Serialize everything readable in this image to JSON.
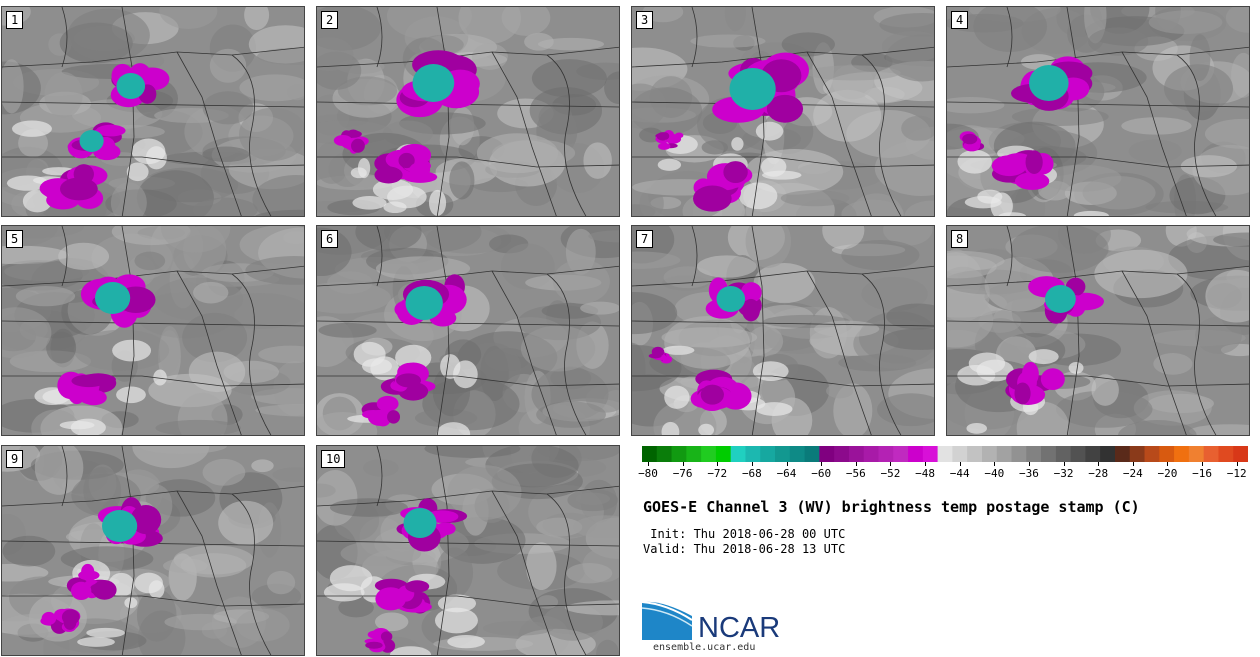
{
  "panels": [
    {
      "label": "1"
    },
    {
      "label": "2"
    },
    {
      "label": "3"
    },
    {
      "label": "4"
    },
    {
      "label": "5"
    },
    {
      "label": "6"
    },
    {
      "label": "7"
    },
    {
      "label": "8"
    },
    {
      "label": "9"
    },
    {
      "label": "10"
    }
  ],
  "colorbar": {
    "ticks": [
      "−80",
      "−76",
      "−72",
      "−68",
      "−64",
      "−60",
      "−56",
      "−52",
      "−48",
      "−44",
      "−40",
      "−36",
      "−32",
      "−28",
      "−24",
      "−20",
      "−16",
      "−12"
    ],
    "colors": [
      "#006400",
      "#0a7d0a",
      "#119a11",
      "#18b418",
      "#20cc20",
      "#00cc00",
      "#20d0c0",
      "#1cb8b0",
      "#16a8a0",
      "#129890",
      "#0e8a86",
      "#0a7b7a",
      "#800080",
      "#8c0a8c",
      "#9a129a",
      "#a81aa8",
      "#b422b4",
      "#c02ac0",
      "#cc00cc",
      "#d810d8",
      "#e2e2e2",
      "#d2d2d2",
      "#c2c2c2",
      "#b2b2b2",
      "#a2a2a2",
      "#929292",
      "#828282",
      "#727272",
      "#626262",
      "#525252",
      "#424242",
      "#323232",
      "#5a2a1a",
      "#8a3a1a",
      "#b84a1a",
      "#d85a10",
      "#f07010",
      "#f08030",
      "#e86030",
      "#e04a20",
      "#d83818"
    ]
  },
  "title": "GOES-E Channel 3 (WV) brightness temp postage stamp (C)",
  "init": " Init: Thu 2018-06-28 00 UTC",
  "valid": "Valid: Thu 2018-06-28 13 UTC",
  "logo": {
    "name": "NCAR",
    "url": "ensemble.ucar.edu"
  }
}
